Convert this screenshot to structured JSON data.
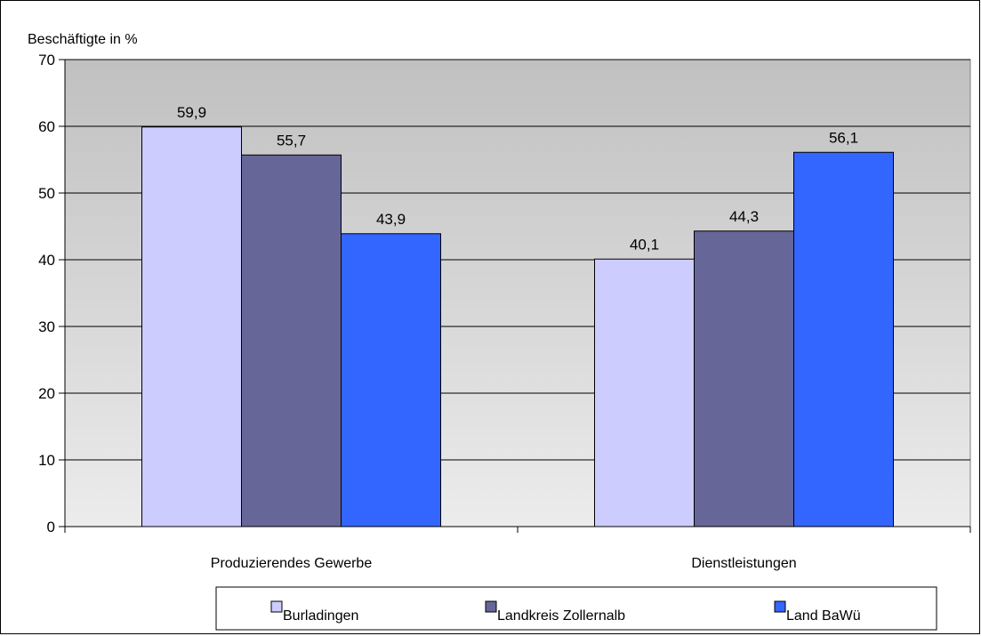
{
  "chart_data": {
    "type": "bar",
    "ylabel": "Beschäftigte in %",
    "categories": [
      "Produzierendes Gewerbe",
      "Dienstleistungen"
    ],
    "series": [
      {
        "name": "Burladingen",
        "values": [
          59.9,
          40.1
        ],
        "labels": [
          "59,9",
          "40,1"
        ],
        "color": "#ccccff"
      },
      {
        "name": "Landkreis Zollernalb",
        "values": [
          55.7,
          44.3
        ],
        "labels": [
          "55,7",
          "44,3"
        ],
        "color": "#666699"
      },
      {
        "name": "Land BaWü",
        "values": [
          43.9,
          56.1
        ],
        "labels": [
          "43,9",
          "56,1"
        ],
        "color": "#3366ff"
      }
    ],
    "ylim": [
      0,
      70
    ],
    "yticks": [
      0,
      10,
      20,
      30,
      40,
      50,
      60,
      70
    ],
    "grid": true,
    "legend_position": "bottom",
    "plot_background": {
      "top": "#c0c0c0",
      "bottom": "#ececec"
    }
  }
}
